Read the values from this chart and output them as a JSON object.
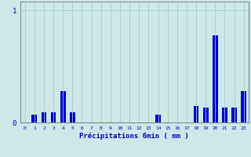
{
  "hours": [
    0,
    1,
    2,
    3,
    4,
    5,
    6,
    7,
    8,
    9,
    10,
    11,
    12,
    13,
    14,
    15,
    16,
    17,
    18,
    19,
    20,
    21,
    22,
    23
  ],
  "values": [
    0,
    0.07,
    0.09,
    0.09,
    0.28,
    0.09,
    0,
    0,
    0,
    0,
    0,
    0,
    0,
    0,
    0.07,
    0,
    0,
    0,
    0.15,
    0.13,
    0.78,
    0.13,
    0.13,
    0.28
  ],
  "bar_color": "#0000cc",
  "bg_color": "#cce8e8",
  "grid_color": "#aacccc",
  "axis_color": "#888888",
  "text_color": "#0000cc",
  "xlabel": "Précipitations 6min ( mm )",
  "ylim": [
    0,
    1.08
  ],
  "ytick_vals": [
    0,
    1
  ],
  "ytick_labels": [
    "0",
    "1"
  ],
  "xlim": [
    -0.5,
    23.5
  ],
  "bar_width": 0.55
}
